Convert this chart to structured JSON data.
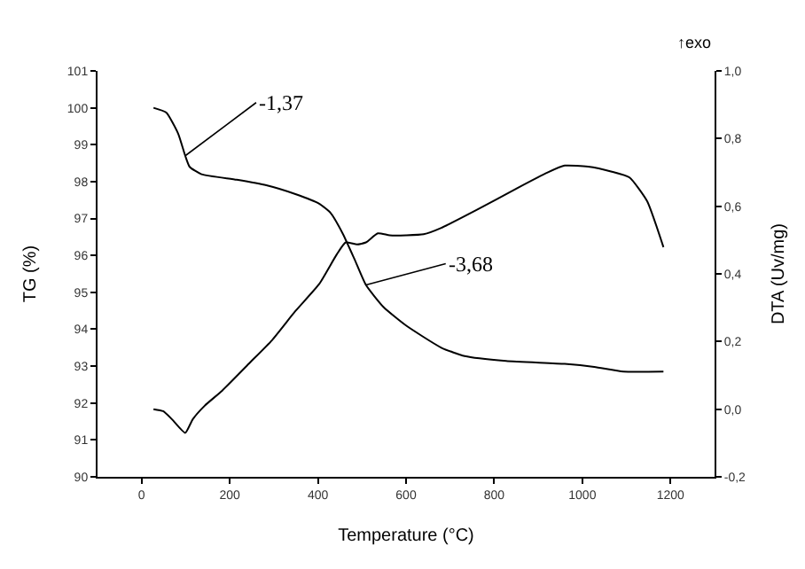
{
  "chart_data": {
    "type": "line",
    "xlabel": "Temperature (°C)",
    "ylabel": "TG (%)",
    "y2label": "DTA (Uv/mg)",
    "xlim": [
      -100,
      1300
    ],
    "xticks": [
      0,
      200,
      400,
      600,
      800,
      1000,
      1200
    ],
    "ylim": [
      90,
      101
    ],
    "yticks": [
      90,
      91,
      92,
      93,
      94,
      95,
      96,
      97,
      98,
      99,
      100,
      101
    ],
    "y2lim": [
      -0.2,
      1.0
    ],
    "y2ticks": [
      {
        "value": -0.2,
        "label": "-0,2"
      },
      {
        "value": 0,
        "label": "0,0"
      },
      {
        "value": 0.2,
        "label": "0,2"
      },
      {
        "value": 0.4,
        "label": "0,4"
      },
      {
        "value": 0.6,
        "label": "0,6"
      },
      {
        "value": 0.8,
        "label": "0,8"
      },
      {
        "value": 1.0,
        "label": "1,0"
      }
    ],
    "marker": "none",
    "line_style": "solid",
    "series": [
      {
        "color": "#000000",
        "x": [
          27,
          56,
          83,
          99,
          109,
          136,
          216,
          283,
          349,
          403,
          429,
          456,
          483,
          509,
          549,
          600,
          680,
          733,
          827,
          960,
          1027,
          1093,
          1184
        ],
        "values": [
          100.0,
          99.87,
          99.3,
          98.7,
          98.4,
          98.2,
          98.05,
          97.9,
          97.66,
          97.4,
          97.15,
          96.6,
          95.9,
          95.2,
          94.6,
          94.1,
          93.5,
          93.27,
          93.14,
          93.06,
          92.98,
          92.85,
          92.85
        ]
      },
      {
        "color": "#000000",
        "axis": "y2",
        "x": [
          27,
          49,
          69,
          99,
          116,
          143,
          183,
          243,
          296,
          349,
          403,
          443,
          463,
          489,
          509,
          536,
          563,
          600,
          640,
          680,
          760,
          853,
          920,
          960,
          1013,
          1067,
          1107,
          1147,
          1184
        ],
        "values": [
          0.0,
          -0.006,
          -0.03,
          -0.07,
          -0.03,
          0.01,
          0.055,
          0.134,
          0.204,
          0.29,
          0.37,
          0.458,
          0.493,
          0.487,
          0.493,
          0.52,
          0.514,
          0.514,
          0.517,
          0.536,
          0.589,
          0.654,
          0.699,
          0.72,
          0.717,
          0.702,
          0.685,
          0.615,
          0.479
        ]
      }
    ],
    "annotations": [
      {
        "text": "-1,37",
        "x": 99,
        "y": 98.7
      },
      {
        "text": "-3,68",
        "x": 509,
        "y": 95.2
      },
      "↑exo"
    ]
  }
}
